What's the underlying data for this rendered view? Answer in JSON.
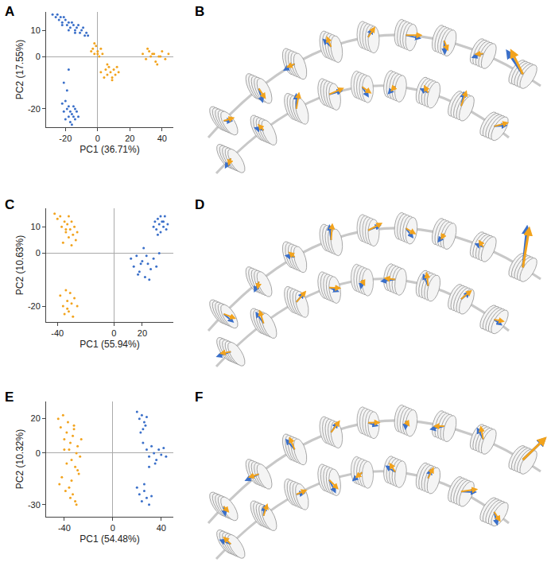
{
  "chart_data": [
    {
      "type": "scatter",
      "panel": "A",
      "xlabel": "PC1 (36.71%)",
      "ylabel": "PC2 (17.55%)",
      "xlim": [
        -32,
        47
      ],
      "ylim": [
        -27,
        17
      ],
      "xticks": [
        -20,
        0,
        20,
        40
      ],
      "yticks": [
        -20,
        0,
        10
      ],
      "series": [
        {
          "color": "#3a6fc9",
          "x": [
            -28,
            -26,
            -25,
            -24,
            -23,
            -22,
            -21,
            -20,
            -19,
            -18,
            -17,
            -16,
            -15,
            -14,
            -13,
            -12,
            -11,
            -10,
            -9,
            -8,
            -7,
            -6,
            -22,
            -18,
            -14,
            -22,
            -21,
            -20,
            -19,
            -18,
            -17,
            -16,
            -15,
            -14,
            -13,
            -12,
            -20,
            -18,
            -16,
            -17,
            -15,
            -19,
            -14,
            -21,
            -18
          ],
          "y": [
            16,
            15,
            16,
            14,
            15,
            13,
            15,
            14,
            12,
            13,
            11,
            13,
            12,
            10,
            11,
            12,
            9,
            10,
            11,
            8,
            9,
            8,
            12,
            10,
            9,
            -18,
            -21,
            -24,
            -20,
            -23,
            -25,
            -22,
            -19,
            -24,
            -21,
            -23,
            -17,
            -19,
            -26,
            -21,
            -23,
            -13,
            -20,
            -10,
            -5
          ]
        },
        {
          "color": "#f2a31d",
          "x": [
            -4,
            -3,
            -2,
            -1,
            0,
            1,
            2,
            3,
            -2,
            0,
            2,
            4,
            5,
            6,
            7,
            8,
            9,
            10,
            11,
            12,
            13,
            6,
            9,
            28,
            30,
            32,
            33,
            35,
            36,
            38,
            40,
            42,
            44,
            31,
            37,
            39,
            34
          ],
          "y": [
            2,
            3,
            1,
            4,
            2,
            0,
            3,
            1,
            5,
            1,
            -6,
            -8,
            -5,
            -7,
            -4,
            -6,
            -8,
            -5,
            -7,
            -4,
            -6,
            -3,
            -9,
            1,
            -1,
            2,
            0,
            1,
            -2,
            0,
            2,
            -1,
            1,
            3,
            -3,
            0,
            1
          ]
        }
      ]
    },
    {
      "type": "scatter",
      "panel": "C",
      "xlabel": "PC1 (55.94%)",
      "ylabel": "PC2 (10.63%)",
      "xlim": [
        -48,
        42
      ],
      "ylim": [
        -26,
        17
      ],
      "xticks": [
        -40,
        0,
        20
      ],
      "yticks": [
        -20,
        0,
        10
      ],
      "series": [
        {
          "color": "#f2a31d",
          "x": [
            -42,
            -40,
            -38,
            -37,
            -35,
            -34,
            -33,
            -32,
            -31,
            -30,
            -29,
            -28,
            -27,
            -26,
            -36,
            -32,
            -30,
            -34,
            -38,
            -36,
            -35,
            -33,
            -32,
            -31,
            -30,
            -29,
            -28,
            -26,
            -34,
            -33
          ],
          "y": [
            15,
            13,
            14,
            10,
            12,
            8,
            11,
            6,
            9,
            12,
            7,
            10,
            5,
            8,
            4,
            14,
            3,
            9,
            -16,
            -20,
            -23,
            -18,
            -22,
            -15,
            -19,
            -24,
            -17,
            -20,
            -14,
            -21
          ]
        },
        {
          "color": "#3a6fc9",
          "x": [
            28,
            29,
            30,
            31,
            32,
            33,
            34,
            35,
            36,
            37,
            38,
            31,
            33,
            35,
            12,
            14,
            16,
            18,
            20,
            22,
            24,
            26,
            28,
            30,
            32,
            17,
            21,
            25,
            19,
            23
          ],
          "y": [
            10,
            12,
            9,
            13,
            11,
            8,
            12,
            10,
            14,
            9,
            11,
            7,
            14,
            12,
            -2,
            -5,
            -1,
            -7,
            -3,
            -9,
            -4,
            -6,
            -2,
            -5,
            0,
            -8,
            2,
            -10,
            -4,
            -1
          ]
        }
      ]
    },
    {
      "type": "scatter",
      "panel": "E",
      "xlabel": "PC1 (54.48%)",
      "ylabel": "PC2 (10.32%)",
      "xlim": [
        -55,
        50
      ],
      "ylim": [
        -37,
        30
      ],
      "xticks": [
        -40,
        0,
        40
      ],
      "yticks": [
        -30,
        0,
        20
      ],
      "series": [
        {
          "color": "#f2a31d",
          "x": [
            -45,
            -43,
            -41,
            -40,
            -38,
            -37,
            -36,
            -35,
            -34,
            -33,
            -32,
            -31,
            -30,
            -29,
            -28,
            -27,
            -26,
            -44,
            -39,
            -35,
            -31,
            -42,
            -36,
            -33,
            -30,
            -38,
            -34,
            -29,
            -40,
            -32
          ],
          "y": [
            20,
            15,
            22,
            8,
            12,
            18,
            2,
            6,
            -4,
            10,
            14,
            -8,
            0,
            4,
            -12,
            -2,
            8,
            -18,
            -22,
            -26,
            -28,
            -14,
            -20,
            -24,
            -30,
            -6,
            -16,
            -10,
            2,
            16
          ]
        },
        {
          "color": "#3a6fc9",
          "x": [
            20,
            22,
            24,
            26,
            28,
            25,
            23,
            27,
            25,
            28,
            30,
            32,
            34,
            36,
            38,
            40,
            42,
            44,
            30,
            35,
            20,
            22,
            24,
            26,
            28,
            30,
            32,
            26
          ],
          "y": [
            24,
            20,
            22,
            18,
            21,
            14,
            12,
            16,
            6,
            2,
            -2,
            4,
            0,
            -4,
            2,
            -1,
            3,
            -2,
            -8,
            -6,
            -20,
            -24,
            -28,
            -22,
            -26,
            -30,
            -25,
            -18
          ]
        }
      ]
    }
  ],
  "structure_panels": [
    {
      "panel": "B"
    },
    {
      "panel": "D"
    },
    {
      "panel": "F"
    }
  ]
}
